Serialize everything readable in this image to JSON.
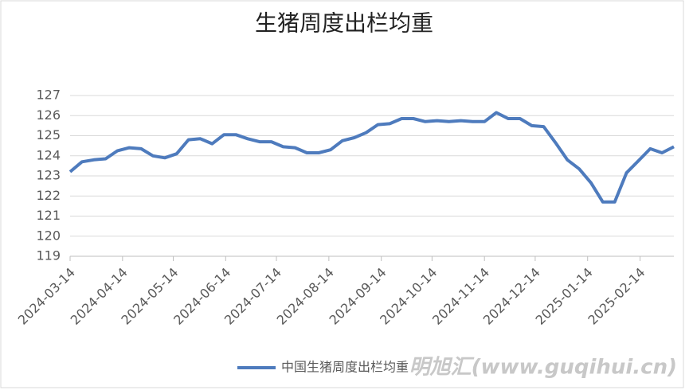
{
  "chart_data": {
    "type": "line",
    "title": "生猪周度出栏均重",
    "x": [
      "2024-03-14",
      "2024-03-21",
      "2024-03-28",
      "2024-04-04",
      "2024-04-11",
      "2024-04-18",
      "2024-04-25",
      "2024-05-02",
      "2024-05-09",
      "2024-05-16",
      "2024-05-23",
      "2024-05-30",
      "2024-06-06",
      "2024-06-13",
      "2024-06-20",
      "2024-06-27",
      "2024-07-04",
      "2024-07-11",
      "2024-07-18",
      "2024-07-25",
      "2024-08-01",
      "2024-08-08",
      "2024-08-15",
      "2024-08-22",
      "2024-08-29",
      "2024-09-05",
      "2024-09-12",
      "2024-09-19",
      "2024-09-26",
      "2024-10-03",
      "2024-10-10",
      "2024-10-17",
      "2024-10-24",
      "2024-10-31",
      "2024-11-07",
      "2024-11-14",
      "2024-11-21",
      "2024-11-28",
      "2024-12-05",
      "2024-12-12",
      "2024-12-19",
      "2024-12-26",
      "2025-01-02",
      "2025-01-09",
      "2025-01-16",
      "2025-01-23",
      "2025-01-30",
      "2025-02-06",
      "2025-02-13",
      "2025-02-20",
      "2025-02-27",
      "2025-03-06"
    ],
    "series": [
      {
        "name": "中国生猪周度出栏均重",
        "color": "#4e7bbd",
        "values": [
          123.2,
          123.7,
          123.8,
          123.85,
          124.25,
          124.4,
          124.35,
          124.0,
          123.9,
          124.1,
          124.8,
          124.85,
          124.6,
          125.05,
          125.05,
          124.85,
          124.7,
          124.7,
          124.45,
          124.4,
          124.15,
          124.15,
          124.3,
          124.75,
          124.9,
          125.15,
          125.55,
          125.6,
          125.85,
          125.85,
          125.7,
          125.75,
          125.7,
          125.75,
          125.7,
          125.7,
          126.15,
          125.85,
          125.85,
          125.5,
          125.45,
          124.65,
          123.8,
          123.35,
          122.65,
          121.7,
          121.7,
          123.15,
          123.75,
          124.35,
          124.15,
          124.45
        ]
      }
    ],
    "xlim": [
      "2024-03-14",
      "2025-03-06"
    ],
    "xticks": [
      "2024-03-14",
      "2024-04-14",
      "2024-05-14",
      "2024-06-14",
      "2024-07-14",
      "2024-08-14",
      "2024-09-14",
      "2024-10-14",
      "2024-11-14",
      "2024-12-14",
      "2025-01-14",
      "2025-02-14"
    ],
    "ylim": [
      119,
      127
    ],
    "yticks": [
      119,
      120,
      121,
      122,
      123,
      124,
      125,
      126,
      127
    ],
    "grid": true,
    "legend": "bottom",
    "watermark": "明旭汇(www.guqihui.cn)"
  }
}
